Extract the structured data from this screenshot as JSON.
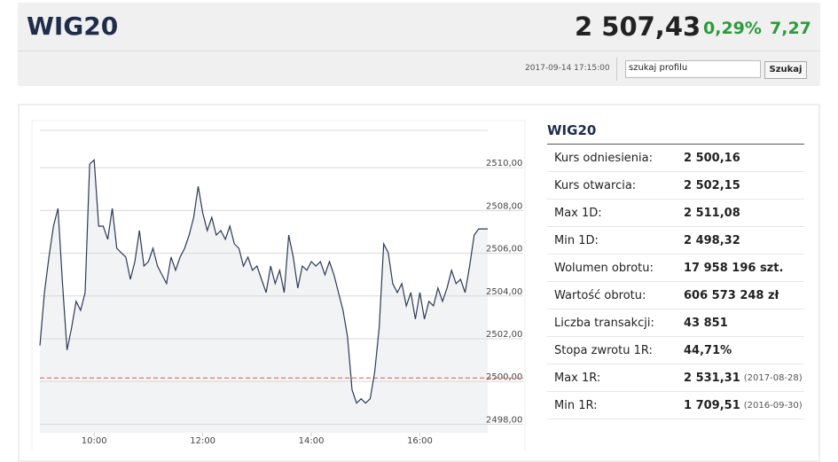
{
  "header": {
    "title": "WIG20",
    "price": "2 507,43",
    "change_pct": "0,29%",
    "change": "7,27",
    "timestamp": "2017-09-14 17:15:00",
    "search_placeholder": "szukaj profilu",
    "search_button": "Szukaj"
  },
  "chart_data": {
    "type": "line",
    "x": [
      "09:00",
      "09:05",
      "09:10",
      "09:15",
      "09:20",
      "09:25",
      "09:30",
      "09:35",
      "09:40",
      "09:45",
      "09:50",
      "09:55",
      "10:00",
      "10:05",
      "10:10",
      "10:15",
      "10:20",
      "10:25",
      "10:30",
      "10:35",
      "10:40",
      "10:45",
      "10:50",
      "10:55",
      "11:00",
      "11:05",
      "11:10",
      "11:15",
      "11:20",
      "11:25",
      "11:30",
      "11:35",
      "11:40",
      "11:45",
      "11:50",
      "11:55",
      "12:00",
      "12:05",
      "12:10",
      "12:15",
      "12:20",
      "12:25",
      "12:30",
      "12:35",
      "12:40",
      "12:45",
      "12:50",
      "12:55",
      "13:00",
      "13:05",
      "13:10",
      "13:15",
      "13:20",
      "13:25",
      "13:30",
      "13:35",
      "13:40",
      "13:45",
      "13:50",
      "13:55",
      "14:00",
      "14:05",
      "14:10",
      "14:15",
      "14:20",
      "14:25",
      "14:30",
      "14:35",
      "14:40",
      "14:45",
      "14:50",
      "14:55",
      "15:00",
      "15:05",
      "15:10",
      "15:15",
      "15:20",
      "15:25",
      "15:30",
      "15:35",
      "15:40",
      "15:45",
      "15:50",
      "15:55",
      "16:00",
      "16:05",
      "16:10",
      "16:15",
      "16:20",
      "16:25",
      "16:30",
      "16:35",
      "16:40",
      "16:45",
      "16:50",
      "16:55",
      "17:00",
      "17:05",
      "17:10",
      "17:15"
    ],
    "series": [
      {
        "color": "#2b3a58",
        "values": [
          2501.68,
          2504.16,
          2505.82,
          2507.27,
          2508.1,
          2504.58,
          2501.47,
          2502.51,
          2503.75,
          2503.33,
          2504.16,
          2510.17,
          2510.37,
          2507.27,
          2507.27,
          2506.65,
          2508.1,
          2506.23,
          2506.02,
          2505.82,
          2504.78,
          2505.61,
          2507.06,
          2505.4,
          2505.61,
          2506.23,
          2505.4,
          2504.99,
          2504.58,
          2505.82,
          2505.2,
          2505.82,
          2506.23,
          2506.85,
          2507.68,
          2509.13,
          2507.89,
          2507.06,
          2507.68,
          2506.85,
          2507.06,
          2506.65,
          2507.27,
          2506.44,
          2506.23,
          2505.4,
          2505.82,
          2505.2,
          2505.4,
          2504.78,
          2504.16,
          2505.4,
          2504.58,
          2505.2,
          2504.16,
          2506.85,
          2505.82,
          2504.37,
          2505.4,
          2505.2,
          2505.61,
          2505.4,
          2505.61,
          2504.99,
          2505.61,
          2504.99,
          2504.16,
          2503.33,
          2502.09,
          2499.61,
          2498.99,
          2499.19,
          2498.99,
          2499.19,
          2500.43,
          2502.51,
          2506.44,
          2506.02,
          2504.58,
          2504.16,
          2504.58,
          2503.54,
          2504.16,
          2502.92,
          2504.16,
          2502.92,
          2503.75,
          2503.54,
          2504.37,
          2503.75,
          2504.37,
          2505.2,
          2504.58,
          2504.78,
          2504.16,
          2505.4,
          2506.85,
          2507.14,
          2507.14,
          2507.14
        ]
      }
    ],
    "reference_line": 2500.16,
    "reference_color": "#e05555",
    "area_color": "#f2f3f5",
    "xlim": [
      "09:00",
      "17:15"
    ],
    "xticks": [
      "10:00",
      "12:00",
      "14:00",
      "16:00"
    ],
    "ylim": [
      2497.6,
      2511.75
    ],
    "yticks": [
      {
        "value": 2498,
        "label": "2498,00"
      },
      {
        "value": 2500,
        "label": "2500,00"
      },
      {
        "value": 2502,
        "label": "2502,00"
      },
      {
        "value": 2504,
        "label": "2504,00"
      },
      {
        "value": 2506,
        "label": "2506,00"
      },
      {
        "value": 2508,
        "label": "2508,00"
      },
      {
        "value": 2510,
        "label": "2510,00"
      }
    ],
    "grid": true
  },
  "stats": {
    "title": "WIG20",
    "rows": [
      [
        "Kurs odniesienia:",
        "2 500,16"
      ],
      [
        "Kurs otwarcia:",
        "2 502,15"
      ],
      [
        "Max 1D:",
        "2 511,08"
      ],
      [
        "Min 1D:",
        "2 498,32"
      ],
      [
        "Wolumen obrotu:",
        "17 958 196 szt."
      ],
      [
        "Wartość obrotu:",
        "606 573 248 zł"
      ],
      [
        "Liczba transakcji:",
        "43 851"
      ],
      [
        "Stopa zwrotu 1R:",
        "44,71%"
      ],
      [
        "Max 1R:",
        "2 531,31",
        "(2017-08-28)"
      ],
      [
        "Min 1R:",
        "1 709,51",
        "(2016-09-30)"
      ]
    ]
  }
}
